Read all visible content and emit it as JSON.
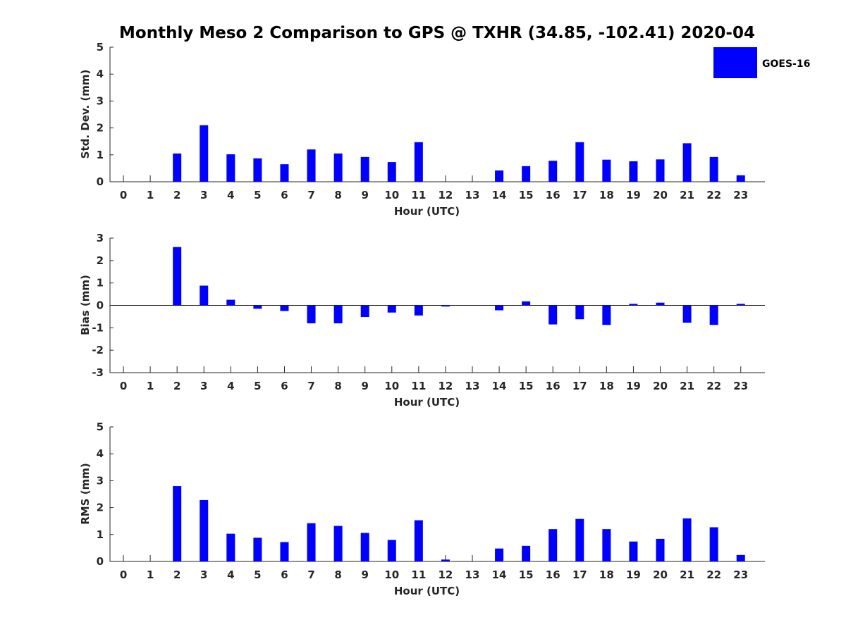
{
  "figure": {
    "title": "Monthly Meso 2 Comparison to GPS @ TXHR (34.85, -102.41) 2020-04",
    "legend": {
      "label": "GOES-16",
      "color": "#0000ff",
      "placement": "top-right"
    }
  },
  "chart_data": [
    {
      "type": "bar",
      "xlabel": "Hour (UTC)",
      "ylabel": "Std. Dev. (mm)",
      "x": [
        0,
        1,
        2,
        3,
        4,
        5,
        6,
        7,
        8,
        9,
        10,
        11,
        12,
        13,
        14,
        15,
        16,
        17,
        18,
        19,
        20,
        21,
        22,
        23
      ],
      "ylim": [
        0,
        5
      ],
      "yticks": [
        0,
        1,
        2,
        3,
        4,
        5
      ],
      "series": [
        {
          "name": "GOES-16",
          "color": "#0000ff",
          "values": [
            0,
            0,
            1.05,
            2.1,
            1.02,
            0.87,
            0.65,
            1.2,
            1.05,
            0.92,
            0.73,
            1.47,
            0,
            0,
            0.42,
            0.58,
            0.78,
            1.47,
            0.82,
            0.76,
            0.83,
            1.43,
            0.92,
            0.24
          ]
        }
      ]
    },
    {
      "type": "bar",
      "xlabel": "Hour (UTC)",
      "ylabel": "Bias (mm)",
      "x": [
        0,
        1,
        2,
        3,
        4,
        5,
        6,
        7,
        8,
        9,
        10,
        11,
        12,
        13,
        14,
        15,
        16,
        17,
        18,
        19,
        20,
        21,
        22,
        23
      ],
      "ylim": [
        -3,
        3
      ],
      "yticks": [
        -3,
        -2,
        -1,
        0,
        1,
        2,
        3
      ],
      "series": [
        {
          "name": "GOES-16",
          "color": "#0000ff",
          "values": [
            0,
            0,
            2.6,
            0.88,
            0.25,
            -0.15,
            -0.25,
            -0.8,
            -0.8,
            -0.52,
            -0.32,
            -0.45,
            -0.05,
            0,
            -0.22,
            0.18,
            -0.85,
            -0.62,
            -0.87,
            0.07,
            0.12,
            -0.77,
            -0.87,
            0.07
          ]
        }
      ]
    },
    {
      "type": "bar",
      "xlabel": "Hour (UTC)",
      "ylabel": "RMS (mm)",
      "x": [
        0,
        1,
        2,
        3,
        4,
        5,
        6,
        7,
        8,
        9,
        10,
        11,
        12,
        13,
        14,
        15,
        16,
        17,
        18,
        19,
        20,
        21,
        22,
        23
      ],
      "ylim": [
        0,
        5
      ],
      "yticks": [
        0,
        1,
        2,
        3,
        4,
        5
      ],
      "series": [
        {
          "name": "GOES-16",
          "color": "#0000ff",
          "values": [
            0,
            0,
            2.8,
            2.28,
            1.03,
            0.88,
            0.72,
            1.42,
            1.32,
            1.06,
            0.8,
            1.53,
            0.07,
            0,
            0.48,
            0.58,
            1.2,
            1.58,
            1.2,
            0.74,
            0.84,
            1.6,
            1.27,
            0.24
          ]
        }
      ]
    }
  ]
}
